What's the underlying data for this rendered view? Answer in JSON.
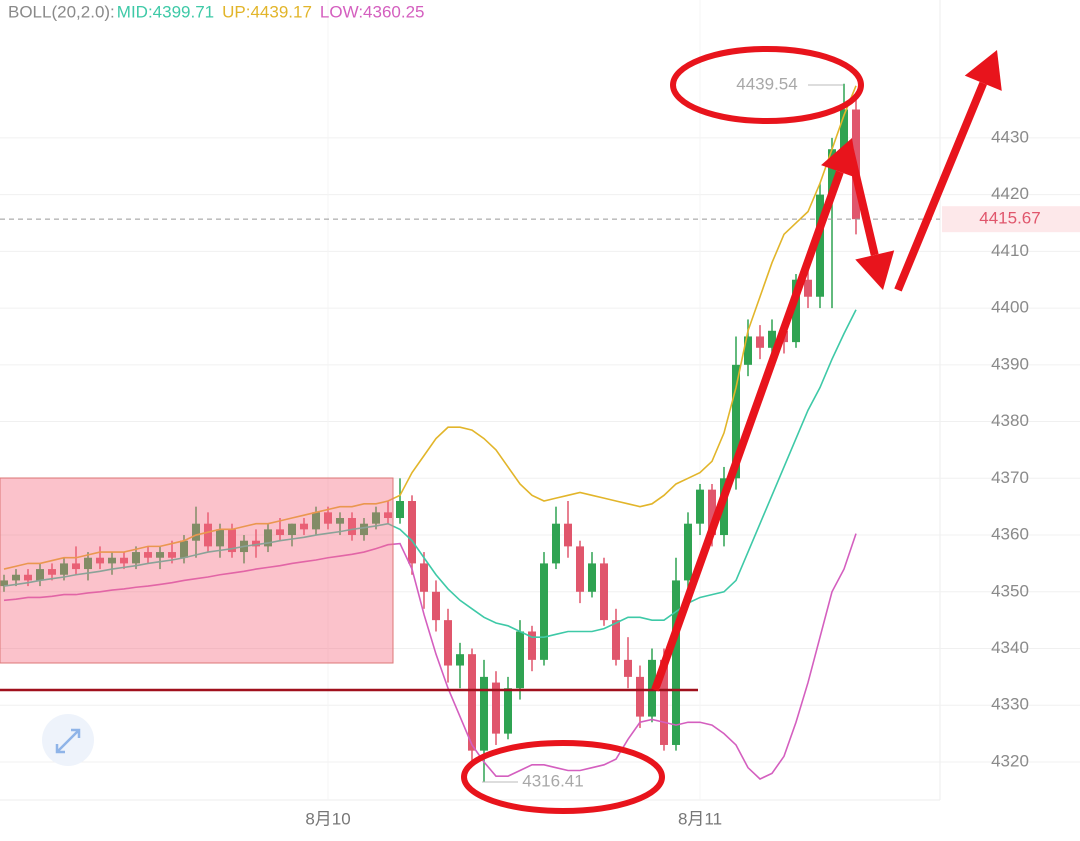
{
  "chart_data": {
    "type": "candlestick",
    "indicator": "BOLL(20,2.0):",
    "categories": [
      null,
      null,
      null,
      null,
      null,
      null,
      null,
      null,
      null,
      null,
      null,
      null,
      null,
      null,
      null,
      null,
      null,
      null,
      null,
      null,
      null,
      null,
      null,
      null,
      null,
      null,
      null,
      "8月10",
      null,
      null,
      null,
      null,
      null,
      null,
      null,
      null,
      null,
      null,
      null,
      null,
      null,
      null,
      null,
      null,
      null,
      null,
      null,
      null,
      null,
      null,
      null,
      null,
      null,
      null,
      null,
      null,
      null,
      null,
      "8月11",
      null,
      null,
      null,
      null,
      null,
      null,
      null,
      null,
      null,
      null,
      null,
      null,
      null
    ],
    "open": [
      4351,
      4352,
      4353,
      4352,
      4354,
      4353,
      4355,
      4354,
      4356,
      4355,
      4356,
      4355,
      4357,
      4356,
      4357,
      4356,
      4359,
      4362,
      4358,
      4361,
      4357,
      4359,
      4358,
      4361,
      4360,
      4362,
      4361,
      4364,
      4362,
      4363,
      4360,
      4362,
      4364,
      4363,
      4366,
      4355,
      4350,
      4345,
      4337,
      4339,
      4322,
      4334,
      4325,
      4333,
      4343,
      4338,
      4355,
      4362,
      4358,
      4350,
      4355,
      4345,
      4338,
      4335,
      4328,
      4338,
      4323,
      4352,
      4362,
      4368,
      4360,
      4370,
      4390,
      4395,
      4393,
      4396,
      4394,
      4405,
      4402,
      4420,
      4428,
      4435
    ],
    "high": [
      4353,
      4354,
      4354,
      4355,
      4355,
      4356,
      4358,
      4357,
      4358,
      4357,
      4357,
      4358,
      4358,
      4358,
      4359,
      4360,
      4365,
      4364,
      4362,
      4362,
      4360,
      4361,
      4362,
      4363,
      4362,
      4363,
      4365,
      4365,
      4364,
      4364,
      4363,
      4365,
      4366,
      4370,
      4367,
      4357,
      4352,
      4347,
      4341,
      4340,
      4338,
      4336,
      4335,
      4345,
      4344,
      4357,
      4365,
      4366,
      4359,
      4357,
      4356,
      4347,
      4342,
      4337,
      4340,
      4340,
      4356,
      4364,
      4369,
      4369,
      4372,
      4395,
      4398,
      4397,
      4398,
      4398,
      4406,
      4408,
      4422,
      4430,
      4439.54,
      4437
    ],
    "low": [
      4350,
      4351,
      4351,
      4351,
      4352,
      4352,
      4353,
      4352,
      4354,
      4353,
      4354,
      4354,
      4355,
      4354,
      4355,
      4355,
      4356,
      4357,
      4356,
      4356,
      4355,
      4356,
      4357,
      4359,
      4358,
      4360,
      4360,
      4361,
      4360,
      4359,
      4359,
      4361,
      4362,
      4362,
      4353,
      4347,
      4343,
      4334,
      4333,
      4320,
      4316.41,
      4323,
      4324,
      4331,
      4336,
      4337,
      4354,
      4356,
      4348,
      4349,
      4344,
      4337,
      4333,
      4326,
      4327,
      4322,
      4322,
      4350,
      4360,
      4358,
      4358,
      4368,
      4388,
      4391,
      4392,
      4392,
      4393,
      4400,
      4400,
      4400,
      4424,
      4413
    ],
    "close": [
      4352,
      4353,
      4352,
      4354,
      4353,
      4355,
      4354,
      4356,
      4355,
      4356,
      4355,
      4357,
      4356,
      4357,
      4356,
      4359,
      4362,
      4358,
      4361,
      4357,
      4359,
      4358,
      4361,
      4360,
      4362,
      4361,
      4364,
      4362,
      4363,
      4360,
      4362,
      4364,
      4363,
      4366,
      4355,
      4350,
      4345,
      4337,
      4339,
      4322,
      4335,
      4325,
      4333,
      4343,
      4338,
      4355,
      4362,
      4358,
      4350,
      4355,
      4345,
      4338,
      4335,
      4328,
      4338,
      4323,
      4352,
      4362,
      4368,
      4360,
      4370,
      4390,
      4395,
      4393,
      4396,
      4394,
      4405,
      4402,
      4420,
      4428,
      4435,
      4415.67
    ],
    "up_color": "#2fa352",
    "down_color": "#e0566c",
    "series": [
      {
        "name": "MID:4399.71",
        "color": "#3ec9a7",
        "values": [
          4351,
          4351.3,
          4351.6,
          4352,
          4352.3,
          4352.6,
          4353,
          4353.3,
          4353.6,
          4354,
          4354.3,
          4354.6,
          4355,
          4355.3,
          4355.6,
          4356,
          4356.5,
          4357,
          4357.3,
          4357.6,
          4358,
          4358.3,
          4358.6,
          4359,
          4359.3,
          4359.6,
          4360,
          4360.3,
          4360.6,
          4361,
          4361.3,
          4361.6,
          4362,
          4361,
          4359,
          4356,
          4353,
          4350.5,
          4348.5,
          4347,
          4345.5,
          4344.5,
          4344,
          4343,
          4342,
          4342,
          4342.5,
          4343,
          4343,
          4343,
          4343.5,
          4344.5,
          4345.5,
          4345.5,
          4345,
          4345,
          4346.5,
          4348,
          4349,
          4349.5,
          4350,
          4352,
          4357,
          4362,
          4367,
          4372,
          4377,
          4382,
          4386,
          4391,
          4395.5,
          4399.71
        ]
      },
      {
        "name": "UP:4439.17",
        "color": "#e2b52a",
        "values": [
          4354,
          4354.5,
          4355,
          4355,
          4355.5,
          4356,
          4356,
          4356.5,
          4357,
          4357,
          4357,
          4357.5,
          4358,
          4358,
          4358.5,
          4359,
          4360,
          4360.5,
          4361,
          4361,
          4361.5,
          4362,
          4362,
          4362.5,
          4363,
          4363.5,
          4364,
          4364.5,
          4365,
          4365,
          4365.5,
          4365.5,
          4366,
          4367,
          4371,
          4374,
          4377,
          4379,
          4379,
          4378.5,
          4377,
          4375,
          4372,
          4369,
          4367,
          4366,
          4366.5,
          4367,
          4367.5,
          4367,
          4366.5,
          4366,
          4365.5,
          4365,
          4365.5,
          4367,
          4369,
          4370,
          4371,
          4373,
          4378,
          4386,
          4396,
          4402,
          4408,
          4413,
          4415,
          4417,
          4422,
          4428,
          4434,
          4439.17
        ]
      },
      {
        "name": "LOW:4360.25",
        "color": "#d45fbf",
        "values": [
          4348.5,
          4348.7,
          4349,
          4349,
          4349.2,
          4349.5,
          4349.5,
          4349.8,
          4350,
          4350.3,
          4350.5,
          4350.8,
          4351,
          4351.3,
          4351.6,
          4352,
          4352.3,
          4352.6,
          4353,
          4353.3,
          4353.6,
          4354,
          4354.3,
          4354.6,
          4355,
          4355.3,
          4355.6,
          4356,
          4356.3,
          4356.6,
          4357,
          4357.6,
          4358.3,
          4358.5,
          4354,
          4346,
          4339,
          4333,
          4328,
          4323,
          4320,
          4317.5,
          4317.5,
          4318.5,
          4319.5,
          4319.5,
          4319,
          4318.5,
          4318.5,
          4319,
          4319.5,
          4320.5,
          4324,
          4327,
          4327.5,
          4327,
          4326.5,
          4327,
          4327,
          4326.5,
          4325,
          4323,
          4319,
          4317,
          4318,
          4321,
          4327,
          4334,
          4342,
          4350,
          4354,
          4360.25
        ]
      }
    ],
    "last_price": 4415.67,
    "high_label": "4439.54",
    "low_label": "4316.41",
    "ylim": [
      4313.3,
      4454.3
    ],
    "yticks": [
      4320,
      4330,
      4340,
      4350,
      4360,
      4370,
      4380,
      4390,
      4400,
      4410,
      4420,
      4430
    ],
    "grid": true
  }
}
